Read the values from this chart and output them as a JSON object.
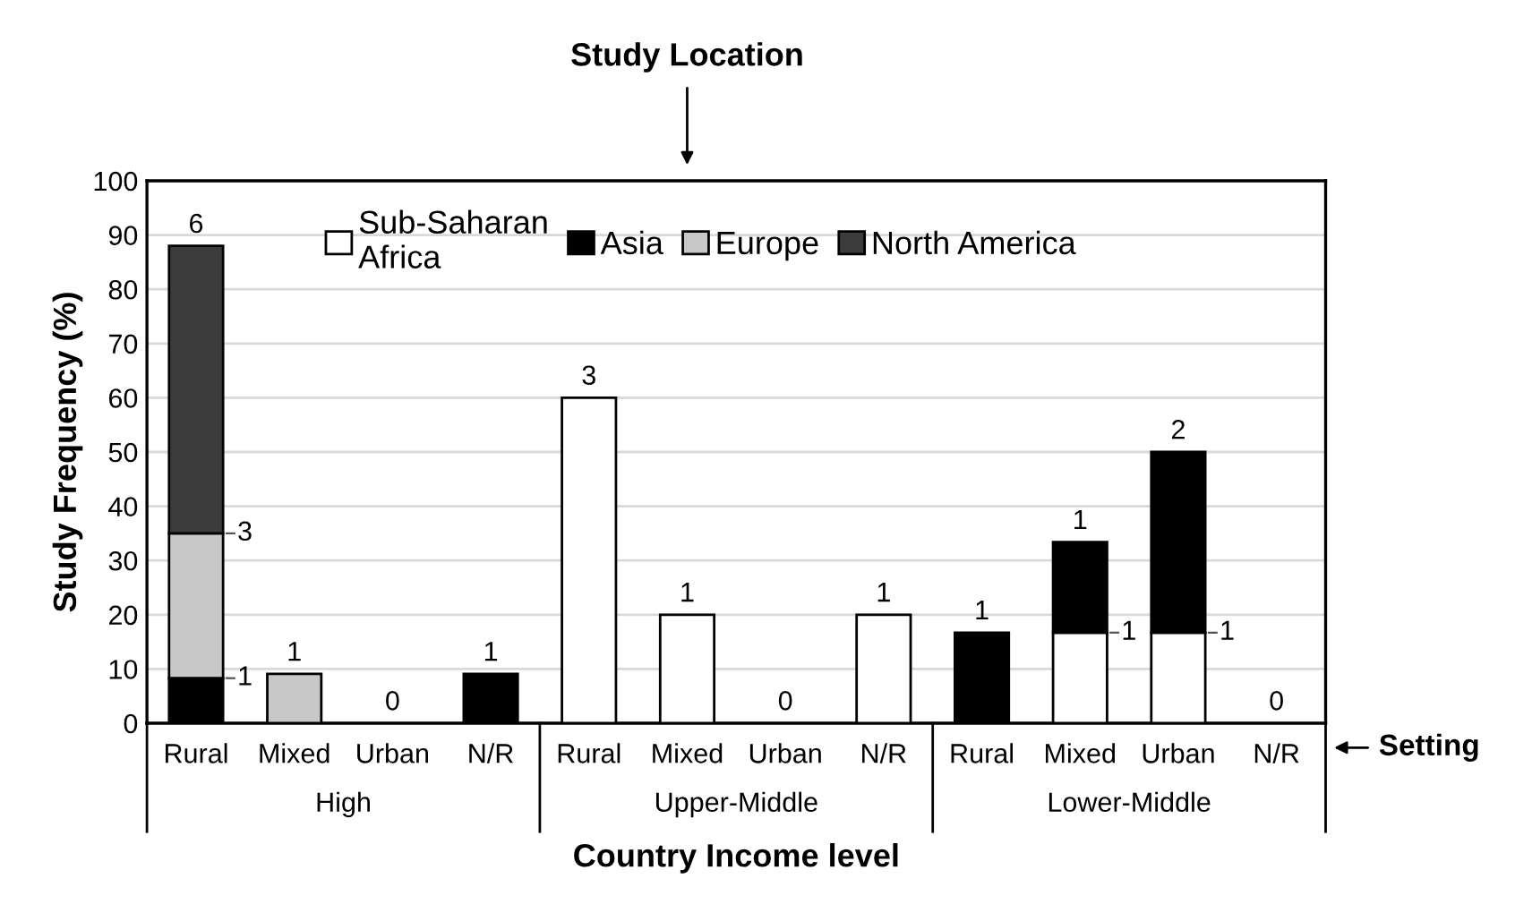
{
  "chart_data": {
    "type": "bar",
    "stacked": true,
    "xlabel": "Country Income level",
    "ylabel": "Study Frequency (%)",
    "categories": [
      "Rural",
      "Mixed",
      "Urban",
      "N/R",
      "Rural",
      "Mixed",
      "Urban",
      "N/R",
      "Rural",
      "Mixed",
      "Urban",
      "N/R"
    ],
    "series": [
      {
        "name": "Sub-Saharan Africa",
        "color": "#ffffff",
        "values": [
          0,
          0,
          0,
          0,
          60,
          20,
          0,
          20,
          0,
          16.7,
          16.7,
          0
        ]
      },
      {
        "name": "Asia",
        "color": "#000000",
        "values": [
          8.3,
          0,
          0,
          9.1,
          0,
          0,
          0,
          0,
          16.7,
          16.7,
          33.3,
          0
        ]
      },
      {
        "name": "Europe",
        "color": "#c8c8c8",
        "values": [
          26.7,
          9.1,
          0,
          0,
          0,
          0,
          0,
          0,
          0,
          0,
          0,
          0
        ]
      },
      {
        "name": "North America",
        "color": "#3c3c3c",
        "values": [
          53,
          0,
          0,
          0,
          0,
          0,
          0,
          0,
          0,
          0,
          0,
          0
        ]
      }
    ],
    "ylim": [
      0,
      100
    ],
    "yticks": [
      0,
      10,
      20,
      30,
      40,
      50,
      60,
      70,
      80,
      90,
      100
    ],
    "grid": "y",
    "legend": "top",
    "annotations": [
      "Study Location",
      "Setting",
      "High",
      "Upper-Middle",
      "Lower-Middle",
      "1",
      "3",
      "6",
      "1",
      "0",
      "1",
      "3",
      "1",
      "0",
      "1",
      "1",
      "1",
      "1",
      "1",
      "2",
      "0"
    ]
  }
}
